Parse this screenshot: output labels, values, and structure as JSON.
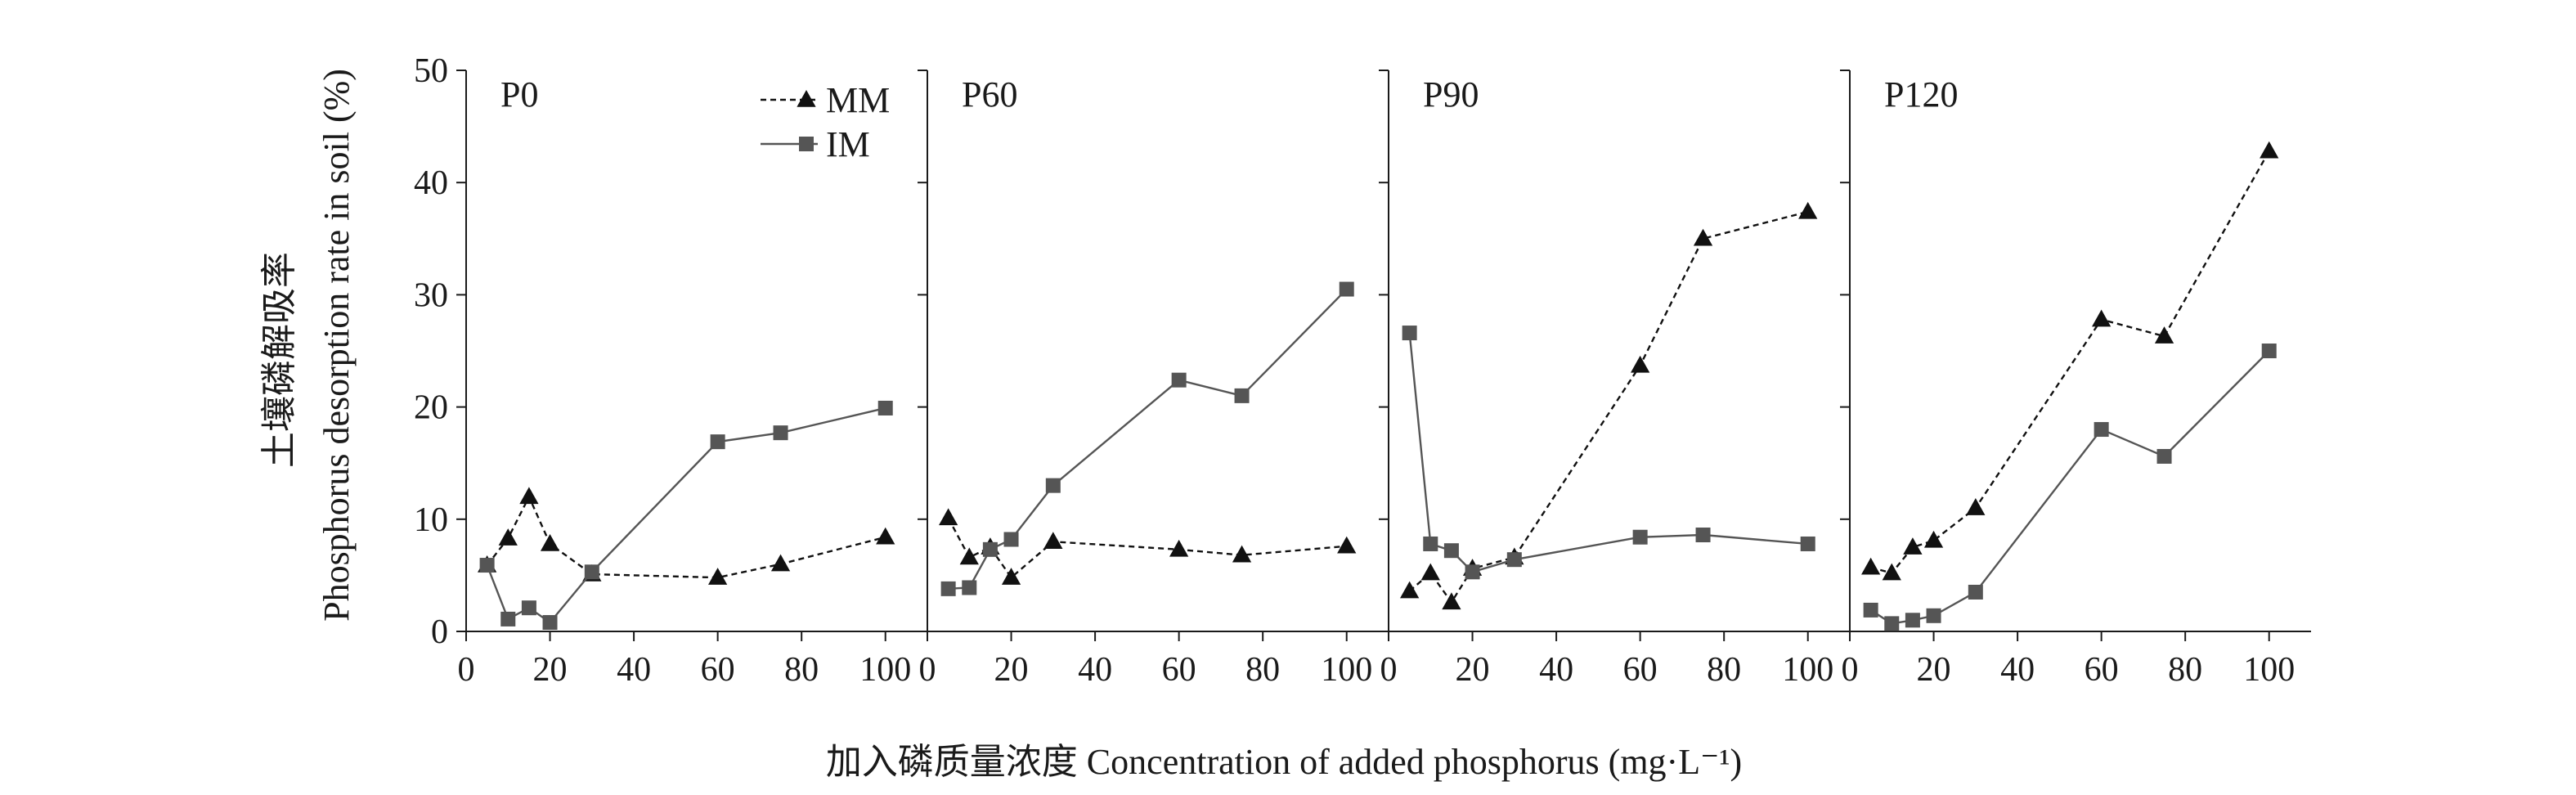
{
  "chart_data": {
    "type": "line",
    "xlabel": "加入磷质量浓度 Concentration of added phosphorus (mg·L⁻¹)",
    "ylabel_cn": "土壤磷解吸率",
    "ylabel_en": "Phosphorus desorption rate in soil (%)",
    "ylim": [
      0,
      50
    ],
    "yticks": [
      0,
      10,
      20,
      30,
      40,
      50
    ],
    "xlim": [
      0,
      110
    ],
    "xticks": [
      0,
      20,
      40,
      60,
      80,
      100
    ],
    "legend_position": "top-center of first panel",
    "grid": false,
    "series_styles": {
      "MM": {
        "marker": "triangle",
        "line": "dashed",
        "color": "#111111"
      },
      "IM": {
        "marker": "square",
        "line": "solid",
        "color": "#555555"
      }
    },
    "legend": [
      {
        "key": "MM",
        "label": "MM"
      },
      {
        "key": "IM",
        "label": "IM"
      }
    ],
    "panels": [
      {
        "name": "P0",
        "series": [
          {
            "name": "MM",
            "x": [
              5,
              10,
              15,
              20,
              30,
              60,
              75,
              100
            ],
            "values": [
              5.9,
              8.3,
              12.0,
              7.8,
              5.1,
              4.8,
              6.0,
              8.4
            ]
          },
          {
            "name": "IM",
            "x": [
              5,
              10,
              15,
              20,
              30,
              60,
              75,
              100
            ],
            "values": [
              5.9,
              1.1,
              2.1,
              0.8,
              5.3,
              16.9,
              17.7,
              19.9
            ]
          }
        ]
      },
      {
        "name": "P60",
        "series": [
          {
            "name": "MM",
            "x": [
              5,
              10,
              15,
              20,
              30,
              60,
              75,
              100
            ],
            "values": [
              10.1,
              6.6,
              7.5,
              4.8,
              8.0,
              7.3,
              6.8,
              7.6
            ]
          },
          {
            "name": "IM",
            "x": [
              5,
              10,
              15,
              20,
              30,
              60,
              75,
              100
            ],
            "values": [
              3.8,
              3.9,
              7.3,
              8.2,
              13.0,
              22.4,
              21.0,
              30.5
            ]
          }
        ]
      },
      {
        "name": "P90",
        "series": [
          {
            "name": "MM",
            "x": [
              5,
              10,
              15,
              20,
              30,
              60,
              75,
              100
            ],
            "values": [
              3.6,
              5.2,
              2.6,
              5.6,
              6.6,
              23.7,
              35.0,
              37.4
            ]
          },
          {
            "name": "IM",
            "x": [
              5,
              10,
              15,
              20,
              30,
              60,
              75,
              100
            ],
            "values": [
              26.6,
              7.8,
              7.2,
              5.3,
              6.4,
              8.4,
              8.6,
              7.8
            ]
          }
        ]
      },
      {
        "name": "P120",
        "series": [
          {
            "name": "MM",
            "x": [
              5,
              10,
              15,
              20,
              30,
              60,
              75,
              100
            ],
            "values": [
              5.7,
              5.2,
              7.5,
              8.1,
              11.0,
              27.8,
              26.3,
              42.8
            ]
          },
          {
            "name": "IM",
            "x": [
              5,
              10,
              15,
              20,
              30,
              60,
              75,
              100
            ],
            "values": [
              1.9,
              0.7,
              1.0,
              1.4,
              3.5,
              18.0,
              15.6,
              25.0
            ]
          }
        ]
      }
    ]
  }
}
